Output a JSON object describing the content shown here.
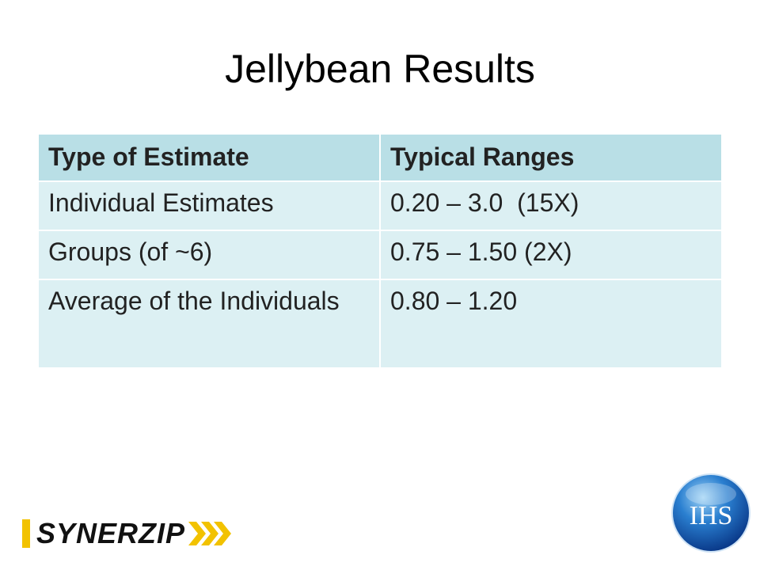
{
  "title": "Jellybean Results",
  "table": {
    "header": [
      "Type of Estimate",
      "Typical Ranges"
    ],
    "rows": [
      [
        "Individual Estimates",
        "0.20 – 3.0  (15X)"
      ],
      [
        "Groups (of ~6)",
        "0.75 – 1.50 (2X)"
      ],
      [
        "Average of the Individuals",
        "0.80 – 1.20"
      ]
    ]
  },
  "logos": {
    "left": "SYNERZIP",
    "right": "IHS"
  }
}
